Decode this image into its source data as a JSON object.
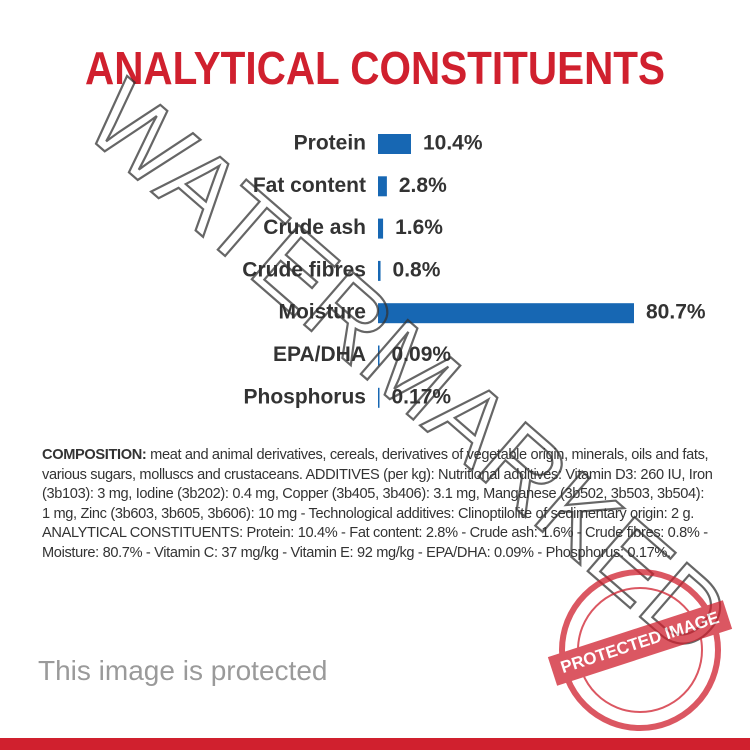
{
  "chart_data": {
    "type": "bar",
    "orientation": "horizontal",
    "title": "ANALYTICAL CONSTITUENTS",
    "categories": [
      "Protein",
      "Fat content",
      "Crude ash",
      "Crude fibres",
      "Moisture",
      "EPA/DHA",
      "Phosphorus"
    ],
    "values": [
      10.4,
      2.8,
      1.6,
      0.8,
      80.7,
      0.09,
      0.17
    ],
    "value_labels": [
      "10.4%",
      "2.8%",
      "1.6%",
      "0.8%",
      "80.7%",
      "0.09%",
      "0.17%"
    ],
    "color": "#1767b3"
  },
  "composition": {
    "label": "COMPOSITION:",
    "text": "meat and animal derivatives, cereals, derivatives of vegetable origin, minerals, oils and fats, various sugars, molluscs and crustaceans. ADDITIVES (per kg): Nutritional additives: Vitamin D3: 260 IU, Iron (3b103): 3 mg, Iodine (3b202): 0.4 mg, Copper (3b405, 3b406): 3.1 mg, Manganese (3b502, 3b503, 3b504): 1 mg, Zinc (3b603, 3b605, 3b606): 10 mg - Technological additives: Clinoptilolite of sedimentary origin: 2 g. ANALYTICAL CONSTITUENTS: Protein: 10.4% - Fat content: 2.8% - Crude ash: 1.6% - Crude fibres: 0.8% - Moisture: 80.7% - Vitamin C: 37 mg/kg - Vitamin E: 92 mg/kg - EPA/DHA: 0.09% - Phosphorus: 0.17%."
  },
  "watermark": "WATERMARKED",
  "notice": "This image is protected",
  "stamp": "PROTECTED IMAGE"
}
